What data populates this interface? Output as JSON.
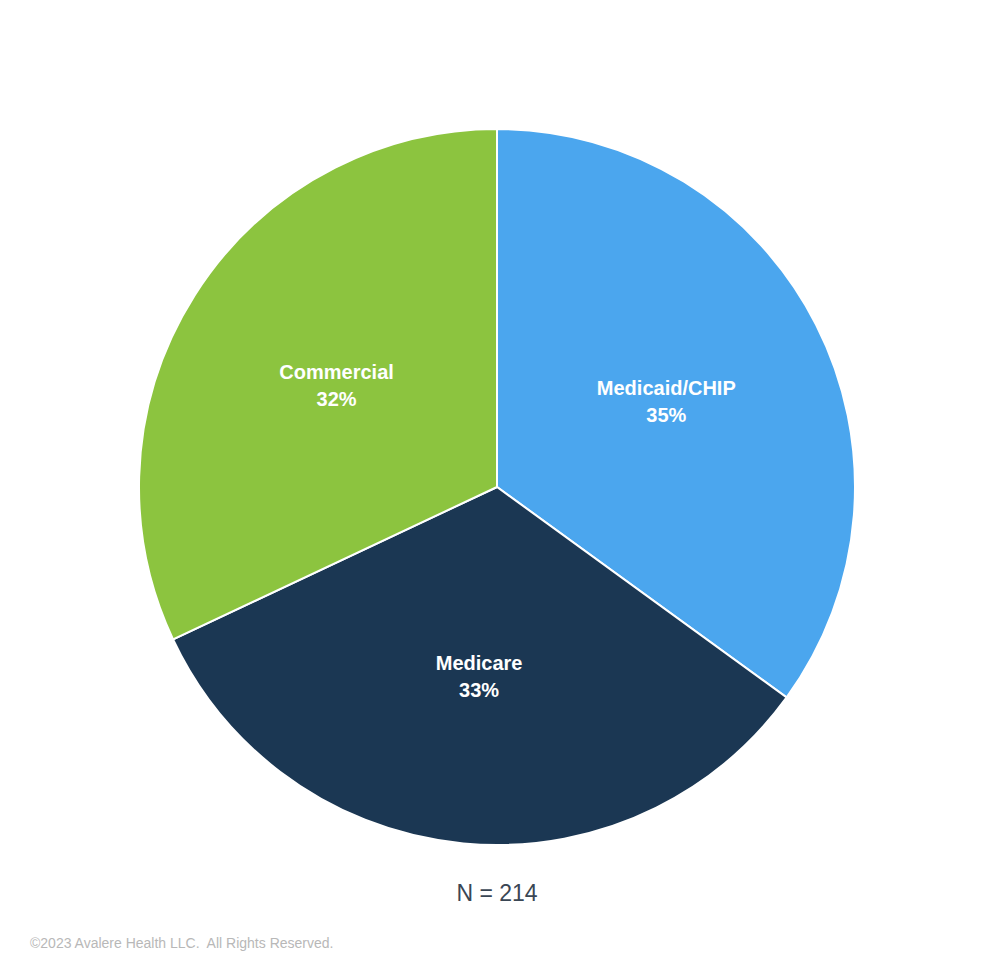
{
  "chart_data": {
    "type": "pie",
    "categories": [
      "Medicaid/CHIP",
      "Medicare",
      "Commercial"
    ],
    "values": [
      35,
      33,
      32
    ],
    "value_labels": [
      "35%",
      "33%",
      "32%"
    ],
    "colors": [
      "#4ba6ee",
      "#1b3753",
      "#8cc43f"
    ],
    "data_labels": true,
    "annotations": [
      "N = 214",
      "©2023 Avalere Health LLC.  All Rights Reserved."
    ]
  }
}
